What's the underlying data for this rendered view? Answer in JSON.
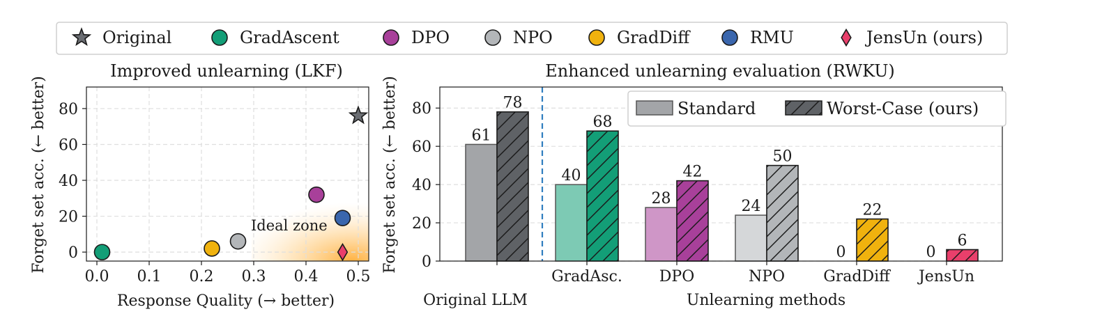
{
  "legend": {
    "items": [
      {
        "label": "Original",
        "marker": "star",
        "color": "#6b6e73"
      },
      {
        "label": "GradAscent",
        "marker": "circle",
        "color": "#139e77"
      },
      {
        "label": "DPO",
        "marker": "circle",
        "color": "#a8409a"
      },
      {
        "label": "NPO",
        "marker": "circle",
        "color": "#b3b6b9"
      },
      {
        "label": "GradDiff",
        "marker": "circle",
        "color": "#f0b20e"
      },
      {
        "label": "RMU",
        "marker": "circle",
        "color": "#3a66ad"
      },
      {
        "label": "JensUn (ours)",
        "marker": "diamond",
        "color": "#e93f6b"
      }
    ]
  },
  "chart_data": [
    {
      "type": "scatter",
      "title": "Improved unlearning (LKF)",
      "xlabel": "Response Quality (→ better)",
      "ylabel": "Forget set acc. (← better)",
      "xlim": [
        -0.02,
        0.52
      ],
      "ylim": [
        -5,
        92
      ],
      "xticks": [
        "0.0",
        "0.1",
        "0.2",
        "0.3",
        "0.4",
        "0.5"
      ],
      "yticks": [
        "0",
        "20",
        "40",
        "60",
        "80"
      ],
      "grid": true,
      "annotation": "Ideal zone",
      "points": [
        {
          "name": "GradAscent",
          "x": 0.01,
          "y": 0,
          "marker": "circle",
          "color": "#139e77"
        },
        {
          "name": "GradDiff",
          "x": 0.22,
          "y": 2,
          "marker": "circle",
          "color": "#f0b20e"
        },
        {
          "name": "NPO",
          "x": 0.27,
          "y": 6,
          "marker": "circle",
          "color": "#b3b6b9"
        },
        {
          "name": "DPO",
          "x": 0.42,
          "y": 32,
          "marker": "circle",
          "color": "#a8409a"
        },
        {
          "name": "RMU",
          "x": 0.47,
          "y": 19,
          "marker": "circle",
          "color": "#3a66ad"
        },
        {
          "name": "JensUn (ours)",
          "x": 0.47,
          "y": 0,
          "marker": "diamond",
          "color": "#e93f6b"
        },
        {
          "name": "Original",
          "x": 0.5,
          "y": 76,
          "marker": "star",
          "color": "#6b6e73"
        }
      ]
    },
    {
      "type": "bar",
      "title": "Enhanced unlearning evaluation (RWKU)",
      "xlabel": "Unlearning methods",
      "ylabel": "Forget set acc. (← better)",
      "extra_label": "Original LLM",
      "ylim": [
        0,
        91
      ],
      "yticks": [
        "0",
        "20",
        "40",
        "60",
        "80"
      ],
      "grid": true,
      "legend_position": "top-right",
      "categories": [
        "",
        "GradAsc.",
        "DPO",
        "NPO",
        "GradDiff",
        "JensUn"
      ],
      "series": [
        {
          "name": "Standard",
          "values": [
            61,
            40,
            28,
            24,
            0,
            0
          ],
          "labels": [
            "61",
            "40",
            "28",
            "24",
            "0",
            "0"
          ]
        },
        {
          "name": "Worst-Case (ours)",
          "values": [
            78,
            68,
            42,
            50,
            22,
            6
          ],
          "labels": [
            "78",
            "68",
            "42",
            "50",
            "22",
            "6"
          ]
        }
      ],
      "colors": [
        "#6b6e73",
        "#139e77",
        "#a8409a",
        "#b3b6b9",
        "#f0b20e",
        "#e93f6b"
      ],
      "legend_colors": {
        "standard": "#a3a5a8",
        "worst": "#5f6266"
      }
    }
  ]
}
